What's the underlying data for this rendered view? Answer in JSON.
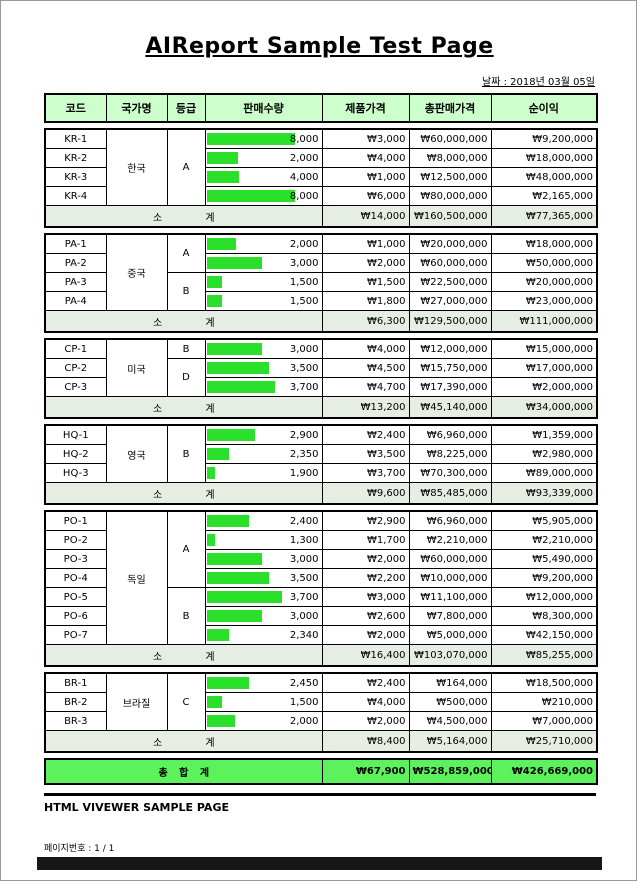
{
  "title": "AIReport Sample Test Page",
  "date_label": "날짜 : 2018년 03월 05일",
  "columns": [
    "코드",
    "국가명",
    "등급",
    "판매수량",
    "제품가격",
    "총판매가격",
    "순이익"
  ],
  "subtotal_label": "소 계",
  "groups": [
    {
      "country": "한국",
      "rows": [
        {
          "code": "KR-1",
          "grade": "A",
          "grade_span": 4,
          "qty": "8,000",
          "bar": 88,
          "price": "₩3,000",
          "total": "₩60,000,000",
          "profit": "₩9,200,000"
        },
        {
          "code": "KR-2",
          "grade": null,
          "qty": "2,000",
          "bar": 31,
          "price": "₩4,000",
          "total": "₩8,000,000",
          "profit": "₩18,000,000"
        },
        {
          "code": "KR-3",
          "grade": null,
          "qty": "4,000",
          "bar": 32,
          "price": "₩1,000",
          "total": "₩12,500,000",
          "profit": "₩48,000,000"
        },
        {
          "code": "KR-4",
          "grade": null,
          "qty": "8,000",
          "bar": 88,
          "price": "₩6,000",
          "total": "₩80,000,000",
          "profit": "₩2,165,000"
        }
      ],
      "subtotal": {
        "price": "₩14,000",
        "total": "₩160,500,000",
        "profit": "₩77,365,000"
      }
    },
    {
      "country": "중국",
      "rows": [
        {
          "code": "PA-1",
          "grade": "A",
          "grade_span": 2,
          "qty": "2,000",
          "bar": 29,
          "price": "₩1,000",
          "total": "₩20,000,000",
          "profit": "₩18,000,000"
        },
        {
          "code": "PA-2",
          "grade": null,
          "qty": "3,000",
          "bar": 55,
          "price": "₩2,000",
          "total": "₩60,000,000",
          "profit": "₩50,000,000"
        },
        {
          "code": "PA-3",
          "grade": "B",
          "grade_span": 2,
          "qty": "1,500",
          "bar": 15,
          "price": "₩1,500",
          "total": "₩22,500,000",
          "profit": "₩20,000,000"
        },
        {
          "code": "PA-4",
          "grade": null,
          "qty": "1,500",
          "bar": 15,
          "price": "₩1,800",
          "total": "₩27,000,000",
          "profit": "₩23,000,000"
        }
      ],
      "subtotal": {
        "price": "₩6,300",
        "total": "₩129,500,000",
        "profit": "₩111,000,000"
      }
    },
    {
      "country": "미국",
      "rows": [
        {
          "code": "CP-1",
          "grade": "B",
          "grade_span": 1,
          "qty": "3,000",
          "bar": 55,
          "price": "₩4,000",
          "total": "₩12,000,000",
          "profit": "₩15,000,000"
        },
        {
          "code": "CP-2",
          "grade": "D",
          "grade_span": 2,
          "qty": "3,500",
          "bar": 62,
          "price": "₩4,500",
          "total": "₩15,750,000",
          "profit": "₩17,000,000"
        },
        {
          "code": "CP-3",
          "grade": null,
          "qty": "3,700",
          "bar": 68,
          "price": "₩4,700",
          "total": "₩17,390,000",
          "profit": "₩2,000,000"
        }
      ],
      "subtotal": {
        "price": "₩13,200",
        "total": "₩45,140,000",
        "profit": "₩34,000,000"
      }
    },
    {
      "country": "영국",
      "rows": [
        {
          "code": "HQ-1",
          "grade": "B",
          "grade_span": 3,
          "qty": "2,900",
          "bar": 48,
          "price": "₩2,400",
          "total": "₩6,960,000",
          "profit": "₩1,359,000"
        },
        {
          "code": "HQ-2",
          "grade": null,
          "qty": "2,350",
          "bar": 22,
          "price": "₩3,500",
          "total": "₩8,225,000",
          "profit": "₩2,980,000"
        },
        {
          "code": "HQ-3",
          "grade": null,
          "qty": "1,900",
          "bar": 8,
          "price": "₩3,700",
          "total": "₩70,300,000",
          "profit": "₩89,000,000"
        }
      ],
      "subtotal": {
        "price": "₩9,600",
        "total": "₩85,485,000",
        "profit": "₩93,339,000"
      }
    },
    {
      "country": "독일",
      "rows": [
        {
          "code": "PO-1",
          "grade": "A",
          "grade_span": 4,
          "qty": "2,400",
          "bar": 42,
          "price": "₩2,900",
          "total": "₩6,960,000",
          "profit": "₩5,905,000"
        },
        {
          "code": "PO-2",
          "grade": null,
          "qty": "1,300",
          "bar": 8,
          "price": "₩1,700",
          "total": "₩2,210,000",
          "profit": "₩2,210,000"
        },
        {
          "code": "PO-3",
          "grade": null,
          "qty": "3,000",
          "bar": 55,
          "price": "₩2,000",
          "total": "₩60,000,000",
          "profit": "₩5,490,000"
        },
        {
          "code": "PO-4",
          "grade": null,
          "qty": "3,500",
          "bar": 62,
          "price": "₩2,200",
          "total": "₩10,000,000",
          "profit": "₩9,200,000"
        },
        {
          "code": "PO-5",
          "grade": "B",
          "grade_span": 3,
          "qty": "3,700",
          "bar": 75,
          "price": "₩3,000",
          "total": "₩11,100,000",
          "profit": "₩12,000,000"
        },
        {
          "code": "PO-6",
          "grade": null,
          "qty": "3,000",
          "bar": 55,
          "price": "₩2,600",
          "total": "₩7,800,000",
          "profit": "₩8,300,000"
        },
        {
          "code": "PO-7",
          "grade": null,
          "qty": "2,340",
          "bar": 22,
          "price": "₩2,000",
          "total": "₩5,000,000",
          "profit": "₩42,150,000"
        }
      ],
      "subtotal": {
        "price": "₩16,400",
        "total": "₩103,070,000",
        "profit": "₩85,255,000"
      }
    },
    {
      "country": "브라질",
      "rows": [
        {
          "code": "BR-1",
          "grade": "C",
          "grade_span": 3,
          "qty": "2,450",
          "bar": 42,
          "price": "₩2,400",
          "total": "₩164,000",
          "profit": "₩18,500,000"
        },
        {
          "code": "BR-2",
          "grade": null,
          "qty": "1,500",
          "bar": 15,
          "price": "₩4,000",
          "total": "₩500,000",
          "profit": "₩210,000"
        },
        {
          "code": "BR-3",
          "grade": null,
          "qty": "2,000",
          "bar": 28,
          "price": "₩2,000",
          "total": "₩4,500,000",
          "profit": "₩7,000,000"
        }
      ],
      "subtotal": {
        "price": "₩8,400",
        "total": "₩5,164,000",
        "profit": "₩25,710,000"
      }
    }
  ],
  "grand_total": {
    "label": "총 합 계",
    "price": "₩67,900",
    "total": "₩528,859,000",
    "profit": "₩426,669,000"
  },
  "footer": {
    "title": "HTML VIVEWER SAMPLE PAGE",
    "page_label": "페이지번호 : 1 / 1"
  },
  "colors": {
    "header_bg": "#ccffcc",
    "subtotal_bg": "#e6eee3",
    "total_bg": "#5cf25c",
    "bar_color": "#2ae02a"
  }
}
